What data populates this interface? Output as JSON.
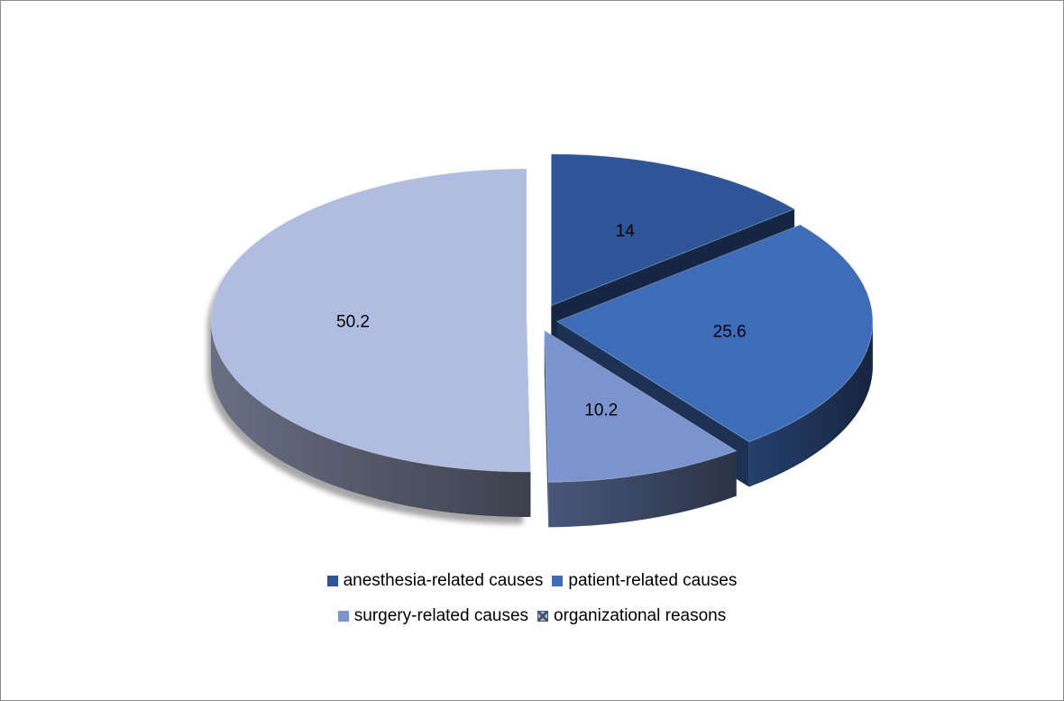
{
  "chart_data": {
    "type": "pie",
    "title": "",
    "style": "3d-exploded",
    "legend_position": "bottom",
    "slices": [
      {
        "label": "anesthesia-related causes",
        "value": 14,
        "color": "#2e5597"
      },
      {
        "label": "patient-related causes",
        "value": 25.6,
        "color": "#3f6cb9"
      },
      {
        "label": "surgery-related causes",
        "value": 10.2,
        "color": "#7b93cf"
      },
      {
        "label": "organizational reasons",
        "value": 50.2,
        "color": "#b1bde0"
      }
    ],
    "legend_rows": [
      [
        0,
        1
      ],
      [
        2,
        3
      ]
    ]
  }
}
